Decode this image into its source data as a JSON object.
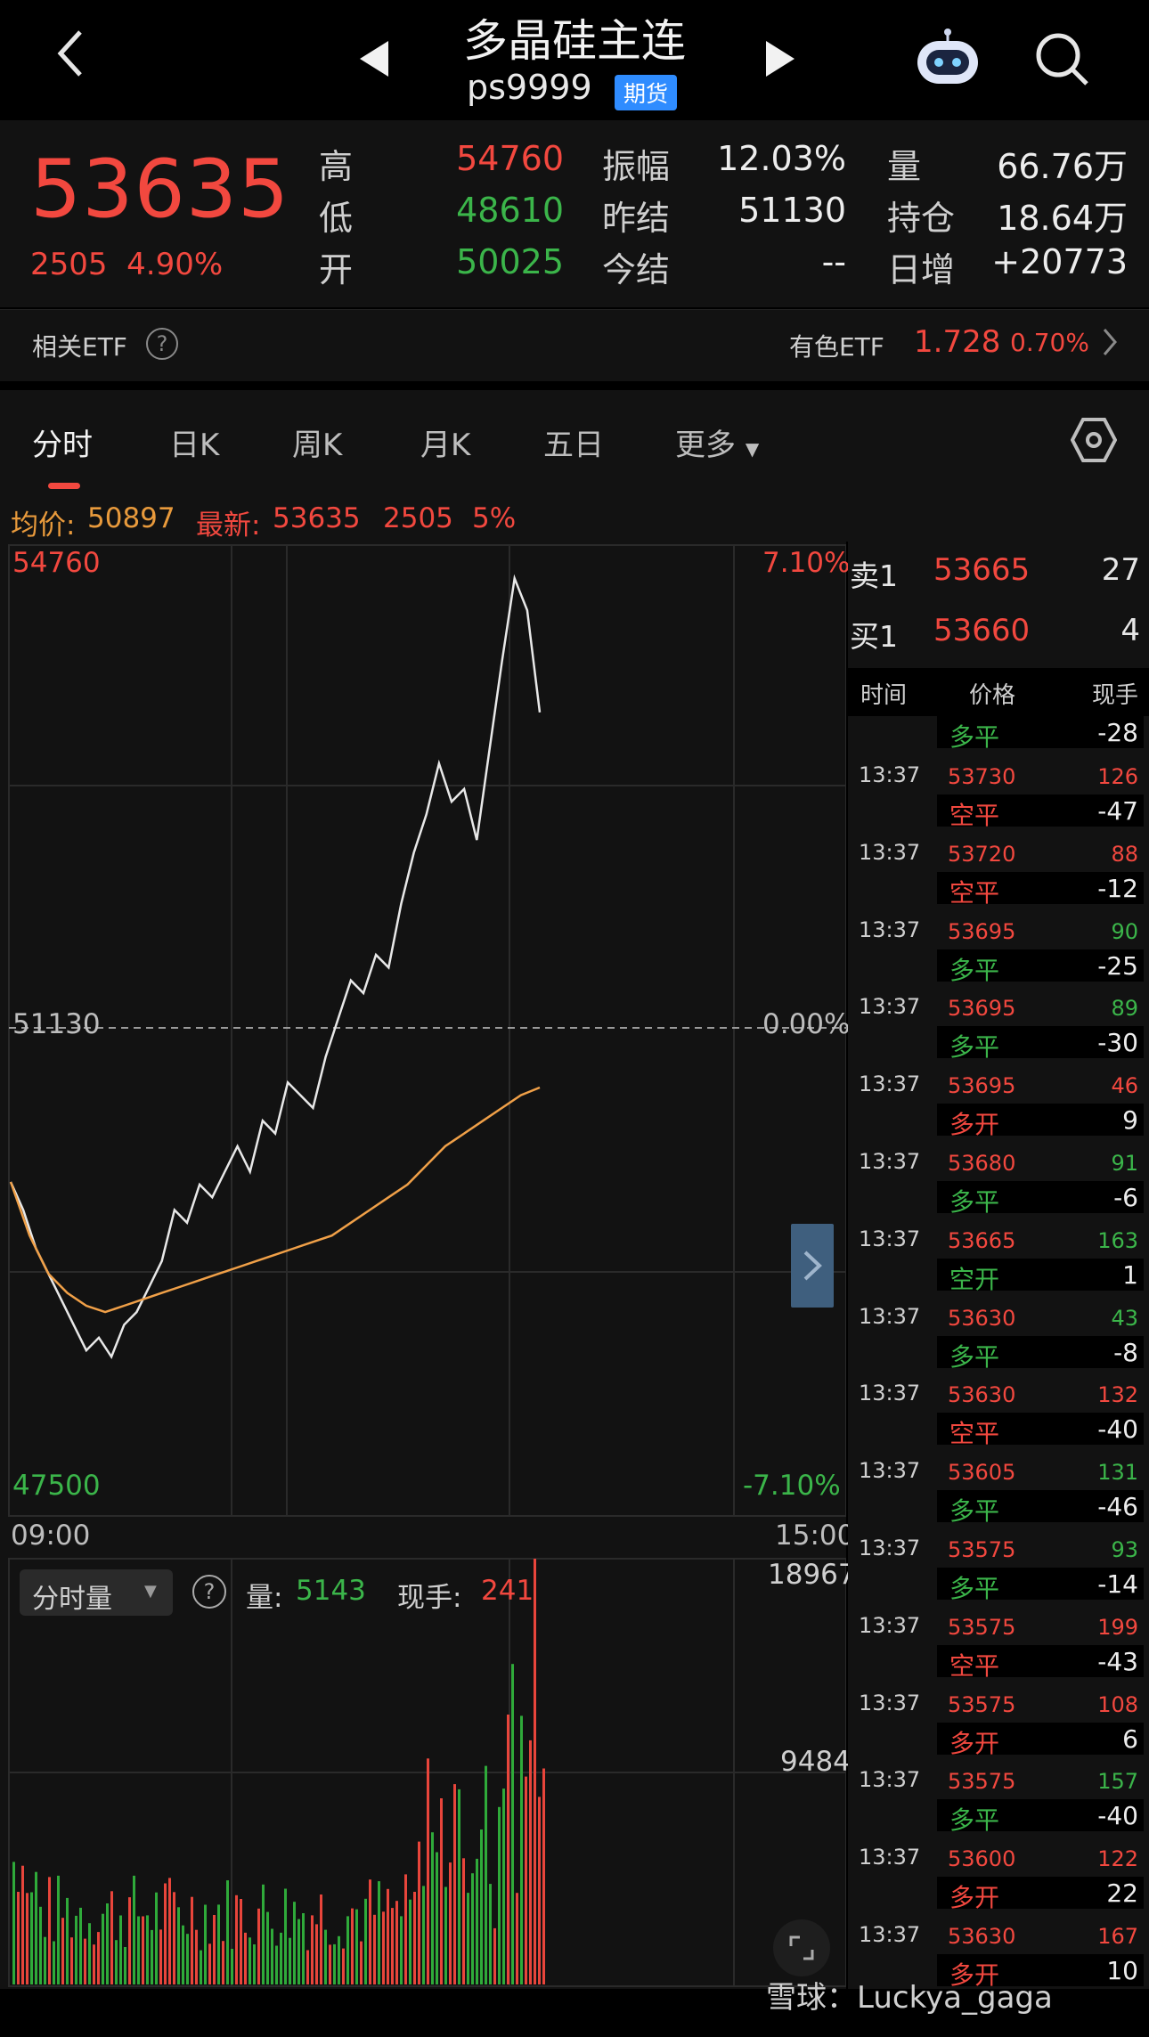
{
  "header": {
    "title": "多晶硅主连",
    "symbol": "ps9999",
    "badge": "期货"
  },
  "quote": {
    "last": "53635",
    "change": "2505",
    "change_pct": "4.90%",
    "stats": [
      {
        "label": "高",
        "value": "54760",
        "color": "red"
      },
      {
        "label": "低",
        "value": "48610",
        "color": "green"
      },
      {
        "label": "开",
        "value": "50025",
        "color": "green"
      },
      {
        "label": "振幅",
        "value": "12.03%",
        "color": "white"
      },
      {
        "label": "昨结",
        "value": "51130",
        "color": "white"
      },
      {
        "label": "今结",
        "value": "--",
        "color": "white"
      },
      {
        "label": "量",
        "value": "66.76万",
        "color": "white"
      },
      {
        "label": "持仓",
        "value": "18.64万",
        "color": "white"
      },
      {
        "label": "日增",
        "value": "+20773",
        "color": "white"
      }
    ]
  },
  "etf": {
    "label": "相关ETF",
    "name": "有色ETF",
    "price": "1.728",
    "pct": "0.70%"
  },
  "tabs": [
    "分时",
    "日K",
    "周K",
    "月K",
    "五日",
    "更多"
  ],
  "info": {
    "avg_label": "均价:",
    "avg_value": "50897",
    "latest_label": "最新:",
    "latest_value": "53635",
    "latest_change": "2505",
    "latest_pct": "5%"
  },
  "chart_labels": {
    "y_high": "54760",
    "y_low": "47500",
    "y_mid": "51130",
    "pct_high": "7.10%",
    "pct_low": "-7.10%",
    "pct_mid": "0.00%",
    "time_start": "09:00",
    "time_end": "15:00"
  },
  "volume_panel": {
    "selector": "分时量",
    "vol_label": "量:",
    "vol_value": "5143",
    "hand_label": "现手:",
    "hand_value": "241",
    "max": "18967",
    "mid": "9484"
  },
  "orderbook": {
    "ask_label": "卖1",
    "ask_price": "53665",
    "ask_qty": "27",
    "bid_label": "买1",
    "bid_price": "53660",
    "bid_qty": "4"
  },
  "trades_header": {
    "time": "时间",
    "price": "价格",
    "hand": "现手"
  },
  "first_trade": {
    "type": "多平",
    "type_color": "green",
    "hand": "-28"
  },
  "trades": [
    {
      "time": "13:37",
      "price": "53730",
      "vol": "126",
      "vol_color": "red",
      "type": "空平",
      "type_color": "red",
      "hand": "-47"
    },
    {
      "time": "13:37",
      "price": "53720",
      "vol": "88",
      "vol_color": "red",
      "type": "空平",
      "type_color": "red",
      "hand": "-12"
    },
    {
      "time": "13:37",
      "price": "53695",
      "vol": "90",
      "vol_color": "green",
      "type": "多平",
      "type_color": "green",
      "hand": "-25"
    },
    {
      "time": "13:37",
      "price": "53695",
      "vol": "89",
      "vol_color": "green",
      "type": "多平",
      "type_color": "green",
      "hand": "-30"
    },
    {
      "time": "13:37",
      "price": "53695",
      "vol": "46",
      "vol_color": "red",
      "type": "多开",
      "type_color": "red",
      "hand": "9"
    },
    {
      "time": "13:37",
      "price": "53680",
      "vol": "91",
      "vol_color": "green",
      "type": "多平",
      "type_color": "green",
      "hand": "-6"
    },
    {
      "time": "13:37",
      "price": "53665",
      "vol": "163",
      "vol_color": "green",
      "type": "空开",
      "type_color": "green",
      "hand": "1"
    },
    {
      "time": "13:37",
      "price": "53630",
      "vol": "43",
      "vol_color": "green",
      "type": "多平",
      "type_color": "green",
      "hand": "-8"
    },
    {
      "time": "13:37",
      "price": "53630",
      "vol": "132",
      "vol_color": "red",
      "type": "空平",
      "type_color": "red",
      "hand": "-40"
    },
    {
      "time": "13:37",
      "price": "53605",
      "vol": "131",
      "vol_color": "green",
      "type": "多平",
      "type_color": "green",
      "hand": "-46"
    },
    {
      "time": "13:37",
      "price": "53575",
      "vol": "93",
      "vol_color": "green",
      "type": "多平",
      "type_color": "green",
      "hand": "-14"
    },
    {
      "time": "13:37",
      "price": "53575",
      "vol": "199",
      "vol_color": "red",
      "type": "空平",
      "type_color": "red",
      "hand": "-43"
    },
    {
      "time": "13:37",
      "price": "53575",
      "vol": "108",
      "vol_color": "red",
      "type": "多开",
      "type_color": "red",
      "hand": "6"
    },
    {
      "time": "13:37",
      "price": "53575",
      "vol": "157",
      "vol_color": "green",
      "type": "多平",
      "type_color": "green",
      "hand": "-40"
    },
    {
      "time": "13:37",
      "price": "53600",
      "vol": "122",
      "vol_color": "red",
      "type": "多开",
      "type_color": "red",
      "hand": "22"
    },
    {
      "time": "13:37",
      "price": "53630",
      "vol": "167",
      "vol_color": "red",
      "type": "多开",
      "type_color": "red",
      "hand": "10"
    }
  ],
  "watermark": "雪球：Luckya_gaga",
  "chart_data": {
    "type": "line",
    "x_range": [
      "09:00",
      "15:00"
    ],
    "ylim": [
      47500,
      54760
    ],
    "reference_price": 51130,
    "series": [
      {
        "values": [
          50020,
          49800,
          49500,
          49300,
          49100,
          48900,
          48700,
          48800,
          48650,
          48900,
          49000,
          49200,
          49400,
          49800,
          49700,
          50000,
          49900,
          50100,
          50300,
          50100,
          50500,
          50400,
          50800,
          50700,
          50600,
          51000,
          51300,
          51600,
          51500,
          51800,
          51700,
          52200,
          52600,
          52900,
          53300,
          53000,
          53100,
          52700,
          53400,
          54100,
          54750,
          54500,
          53700
        ]
      },
      {
        "values": [
          50020,
          49600,
          49300,
          49150,
          49050,
          49000,
          49050,
          49100,
          49150,
          49200,
          49250,
          49300,
          49350,
          49400,
          49450,
          49500,
          49550,
          49600,
          49700,
          49800,
          49900,
          50000,
          50150,
          50300,
          50400,
          50500,
          50600,
          50700,
          50760
        ]
      }
    ],
    "volume": {
      "ylim": [
        0,
        18967
      ]
    }
  }
}
